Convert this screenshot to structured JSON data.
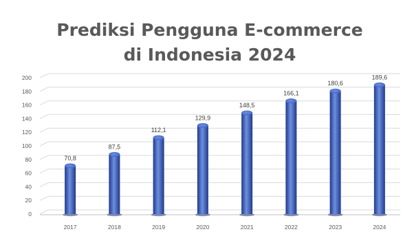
{
  "chart_data": {
    "type": "bar",
    "title": "Prediksi Pengguna E-commerce di Indonesia 2024",
    "categories": [
      "2017",
      "2018",
      "2019",
      "2020",
      "2021",
      "2022",
      "2023",
      "2024"
    ],
    "values": [
      70.8,
      87.5,
      112.1,
      129.9,
      148.5,
      166.1,
      180.6,
      189.6
    ],
    "value_labels": [
      "70,8",
      "87,5",
      "112,1",
      "129,9",
      "148,5",
      "166,1",
      "180,6",
      "189,6"
    ],
    "y_ticks": [
      "0",
      "20",
      "40",
      "60",
      "80",
      "100",
      "120",
      "140",
      "160",
      "180",
      "200"
    ],
    "xlabel": "",
    "ylabel": "",
    "ylim": [
      0,
      200
    ],
    "grid": true,
    "legend": "none",
    "bar_color": "#3a5fc4",
    "bar_color_dark": "#1f3a8a",
    "bar_color_light": "#6f8fe0",
    "grid_color": "#d9d9d9",
    "title_color": "#595959"
  }
}
